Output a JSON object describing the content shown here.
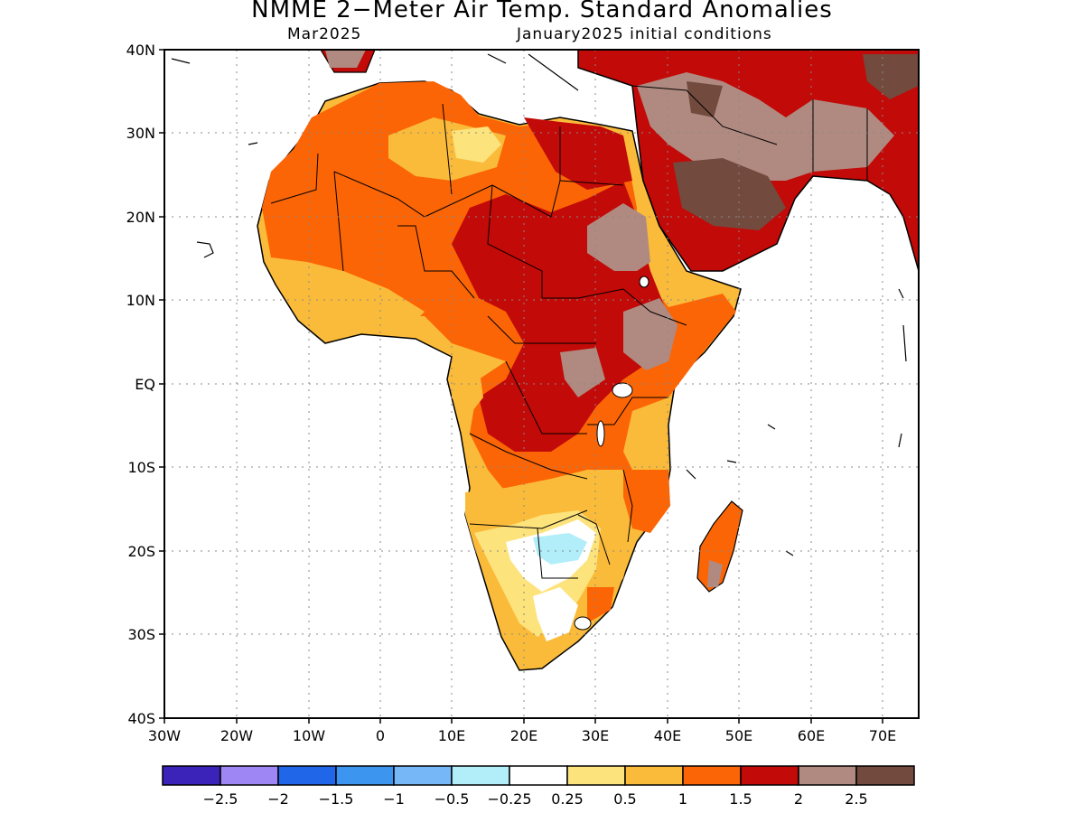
{
  "title": "NMME 2−Meter Air Temp. Standard Anomalies",
  "subtitle_left": "Mar2025",
  "subtitle_right": "January2025 initial conditions",
  "lat_labels": [
    "40N",
    "30N",
    "20N",
    "10N",
    "EQ",
    "10S",
    "20S",
    "30S",
    "40S"
  ],
  "lon_labels": [
    "30W",
    "20W",
    "10W",
    "0",
    "10E",
    "20E",
    "30E",
    "40E",
    "50E",
    "60E",
    "70E"
  ],
  "colorbar": {
    "colors": [
      "#3b22b8",
      "#9f86f5",
      "#1f67e8",
      "#3c96f0",
      "#76b7f7",
      "#b2eef9",
      "#ffffff",
      "#fde37c",
      "#fbbb3a",
      "#fb6506",
      "#c20a08",
      "#b08a80",
      "#724b3e"
    ],
    "labels": [
      "−2.5",
      "−2",
      "−1.5",
      "−1",
      "−0.5",
      "−0.25",
      "0.25",
      "0.5",
      "1",
      "1.5",
      "2",
      "2.5"
    ]
  }
}
